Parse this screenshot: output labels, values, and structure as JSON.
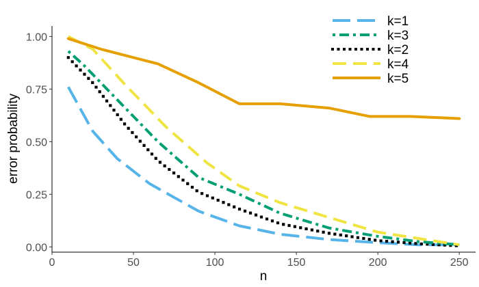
{
  "chart_data": {
    "type": "line",
    "title": "",
    "xlabel": "n",
    "ylabel": "error probability",
    "xlim": [
      0,
      260
    ],
    "ylim": [
      -0.025,
      1.05
    ],
    "x_ticks": [
      0,
      50,
      100,
      150,
      200,
      250
    ],
    "x_tick_labels": [
      "0",
      "50",
      "100",
      "150",
      "200",
      "250"
    ],
    "y_ticks": [
      0,
      0.25,
      0.5,
      0.75,
      1.0
    ],
    "y_tick_labels": [
      "0.00",
      "0.25",
      "0.50",
      "0.75",
      "1.00"
    ],
    "grid": false,
    "legend_position": "top-right",
    "series": [
      {
        "name": "k=1",
        "color": "#56B4E9",
        "dash": "long-dash",
        "x": [
          10,
          25,
          40,
          60,
          90,
          115,
          140,
          170,
          200,
          225,
          250
        ],
        "y": [
          0.76,
          0.55,
          0.42,
          0.3,
          0.17,
          0.1,
          0.06,
          0.035,
          0.02,
          0.01,
          0.01
        ]
      },
      {
        "name": "k=3",
        "color": "#009E73",
        "dash": "dot-dash",
        "x": [
          10,
          20,
          40,
          65,
          90,
          115,
          140,
          170,
          200,
          225,
          250
        ],
        "y": [
          0.93,
          0.86,
          0.7,
          0.5,
          0.33,
          0.25,
          0.16,
          0.09,
          0.05,
          0.025,
          0.01
        ]
      },
      {
        "name": "k=2",
        "color": "#000000",
        "dash": "dotted",
        "x": [
          10,
          25,
          45,
          65,
          90,
          115,
          140,
          170,
          200,
          225,
          250
        ],
        "y": [
          0.9,
          0.78,
          0.58,
          0.41,
          0.26,
          0.18,
          0.11,
          0.065,
          0.03,
          0.015,
          0.005
        ]
      },
      {
        "name": "k=4",
        "color": "#F0E442",
        "dash": "dash",
        "x": [
          10,
          25,
          45,
          70,
          95,
          115,
          140,
          170,
          200,
          225,
          250
        ],
        "y": [
          1.0,
          0.94,
          0.77,
          0.57,
          0.4,
          0.29,
          0.21,
          0.14,
          0.07,
          0.04,
          0.01
        ]
      },
      {
        "name": "k=5",
        "color": "#E69F00",
        "dash": "solid",
        "x": [
          10,
          30,
          65,
          90,
          115,
          140,
          170,
          195,
          220,
          250
        ],
        "y": [
          0.99,
          0.94,
          0.87,
          0.78,
          0.68,
          0.68,
          0.66,
          0.62,
          0.62,
          0.61
        ]
      }
    ]
  }
}
